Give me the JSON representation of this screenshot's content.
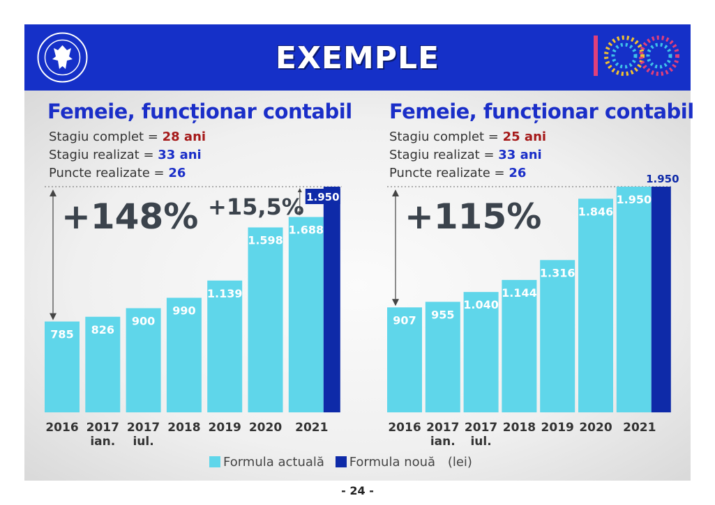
{
  "header": {
    "title": "EXEMPLE"
  },
  "logo": {
    "ring_text": "GUVERNUL ROMÂNIEI"
  },
  "centenary": {
    "text": "100"
  },
  "colors": {
    "formula_actuala": "#5fd6ea",
    "formula_noua": "#0e2aa8",
    "header": "#1530c8"
  },
  "left": {
    "title": "Femeie, funcționar contabil",
    "rows": [
      {
        "label": "Stagiu complet = ",
        "value": "28 ani"
      },
      {
        "label": "Stagiu realizat = ",
        "value": "33 ani"
      },
      {
        "label": "Puncte realizate = ",
        "value": "26"
      }
    ],
    "increase_total": "+148%",
    "increase_new": "+15,5%"
  },
  "right": {
    "title": "Femeie, funcționar contabil",
    "rows": [
      {
        "label": "Stagiu complet = ",
        "value": "25 ani"
      },
      {
        "label": "Stagiu realizat = ",
        "value": "33 ani"
      },
      {
        "label": "Puncte realizate = ",
        "value": "26"
      }
    ],
    "increase_total": "+115%"
  },
  "legend": {
    "actual": "Formula actuală",
    "new": "Formula nouă",
    "unit": "(lei)"
  },
  "page_number": "- 24 -",
  "chart_data": [
    {
      "type": "bar",
      "categories": [
        "2016",
        "2017 ian.",
        "2017 iul.",
        "2018",
        "2019",
        "2020",
        "2021"
      ],
      "series": [
        {
          "name": "Formula actuală",
          "values": [
            785,
            826,
            900,
            990,
            1139,
            1598,
            1688
          ],
          "labels": [
            "785",
            "826",
            "900",
            "990",
            "1.139",
            "1.598",
            "1.688"
          ]
        },
        {
          "name": "Formula nouă",
          "values": [
            null,
            null,
            null,
            null,
            null,
            null,
            1950
          ],
          "labels": [
            "",
            "",
            "",
            "",
            "",
            "",
            "1.950"
          ]
        }
      ],
      "ylim": [
        0,
        1950
      ]
    },
    {
      "type": "bar",
      "categories": [
        "2016",
        "2017 ian.",
        "2017 iul.",
        "2018",
        "2019",
        "2020",
        "2021"
      ],
      "series": [
        {
          "name": "Formula actuală",
          "values": [
            907,
            955,
            1040,
            1144,
            1316,
            1846,
            1950
          ],
          "labels": [
            "907",
            "955",
            "1.040",
            "1.144",
            "1.316",
            "1.846",
            "1.950"
          ]
        },
        {
          "name": "Formula nouă",
          "values": [
            null,
            null,
            null,
            null,
            null,
            null,
            1950
          ],
          "labels": [
            "",
            "",
            "",
            "",
            "",
            "",
            "1.950"
          ]
        }
      ],
      "ylim": [
        0,
        1950
      ]
    }
  ]
}
